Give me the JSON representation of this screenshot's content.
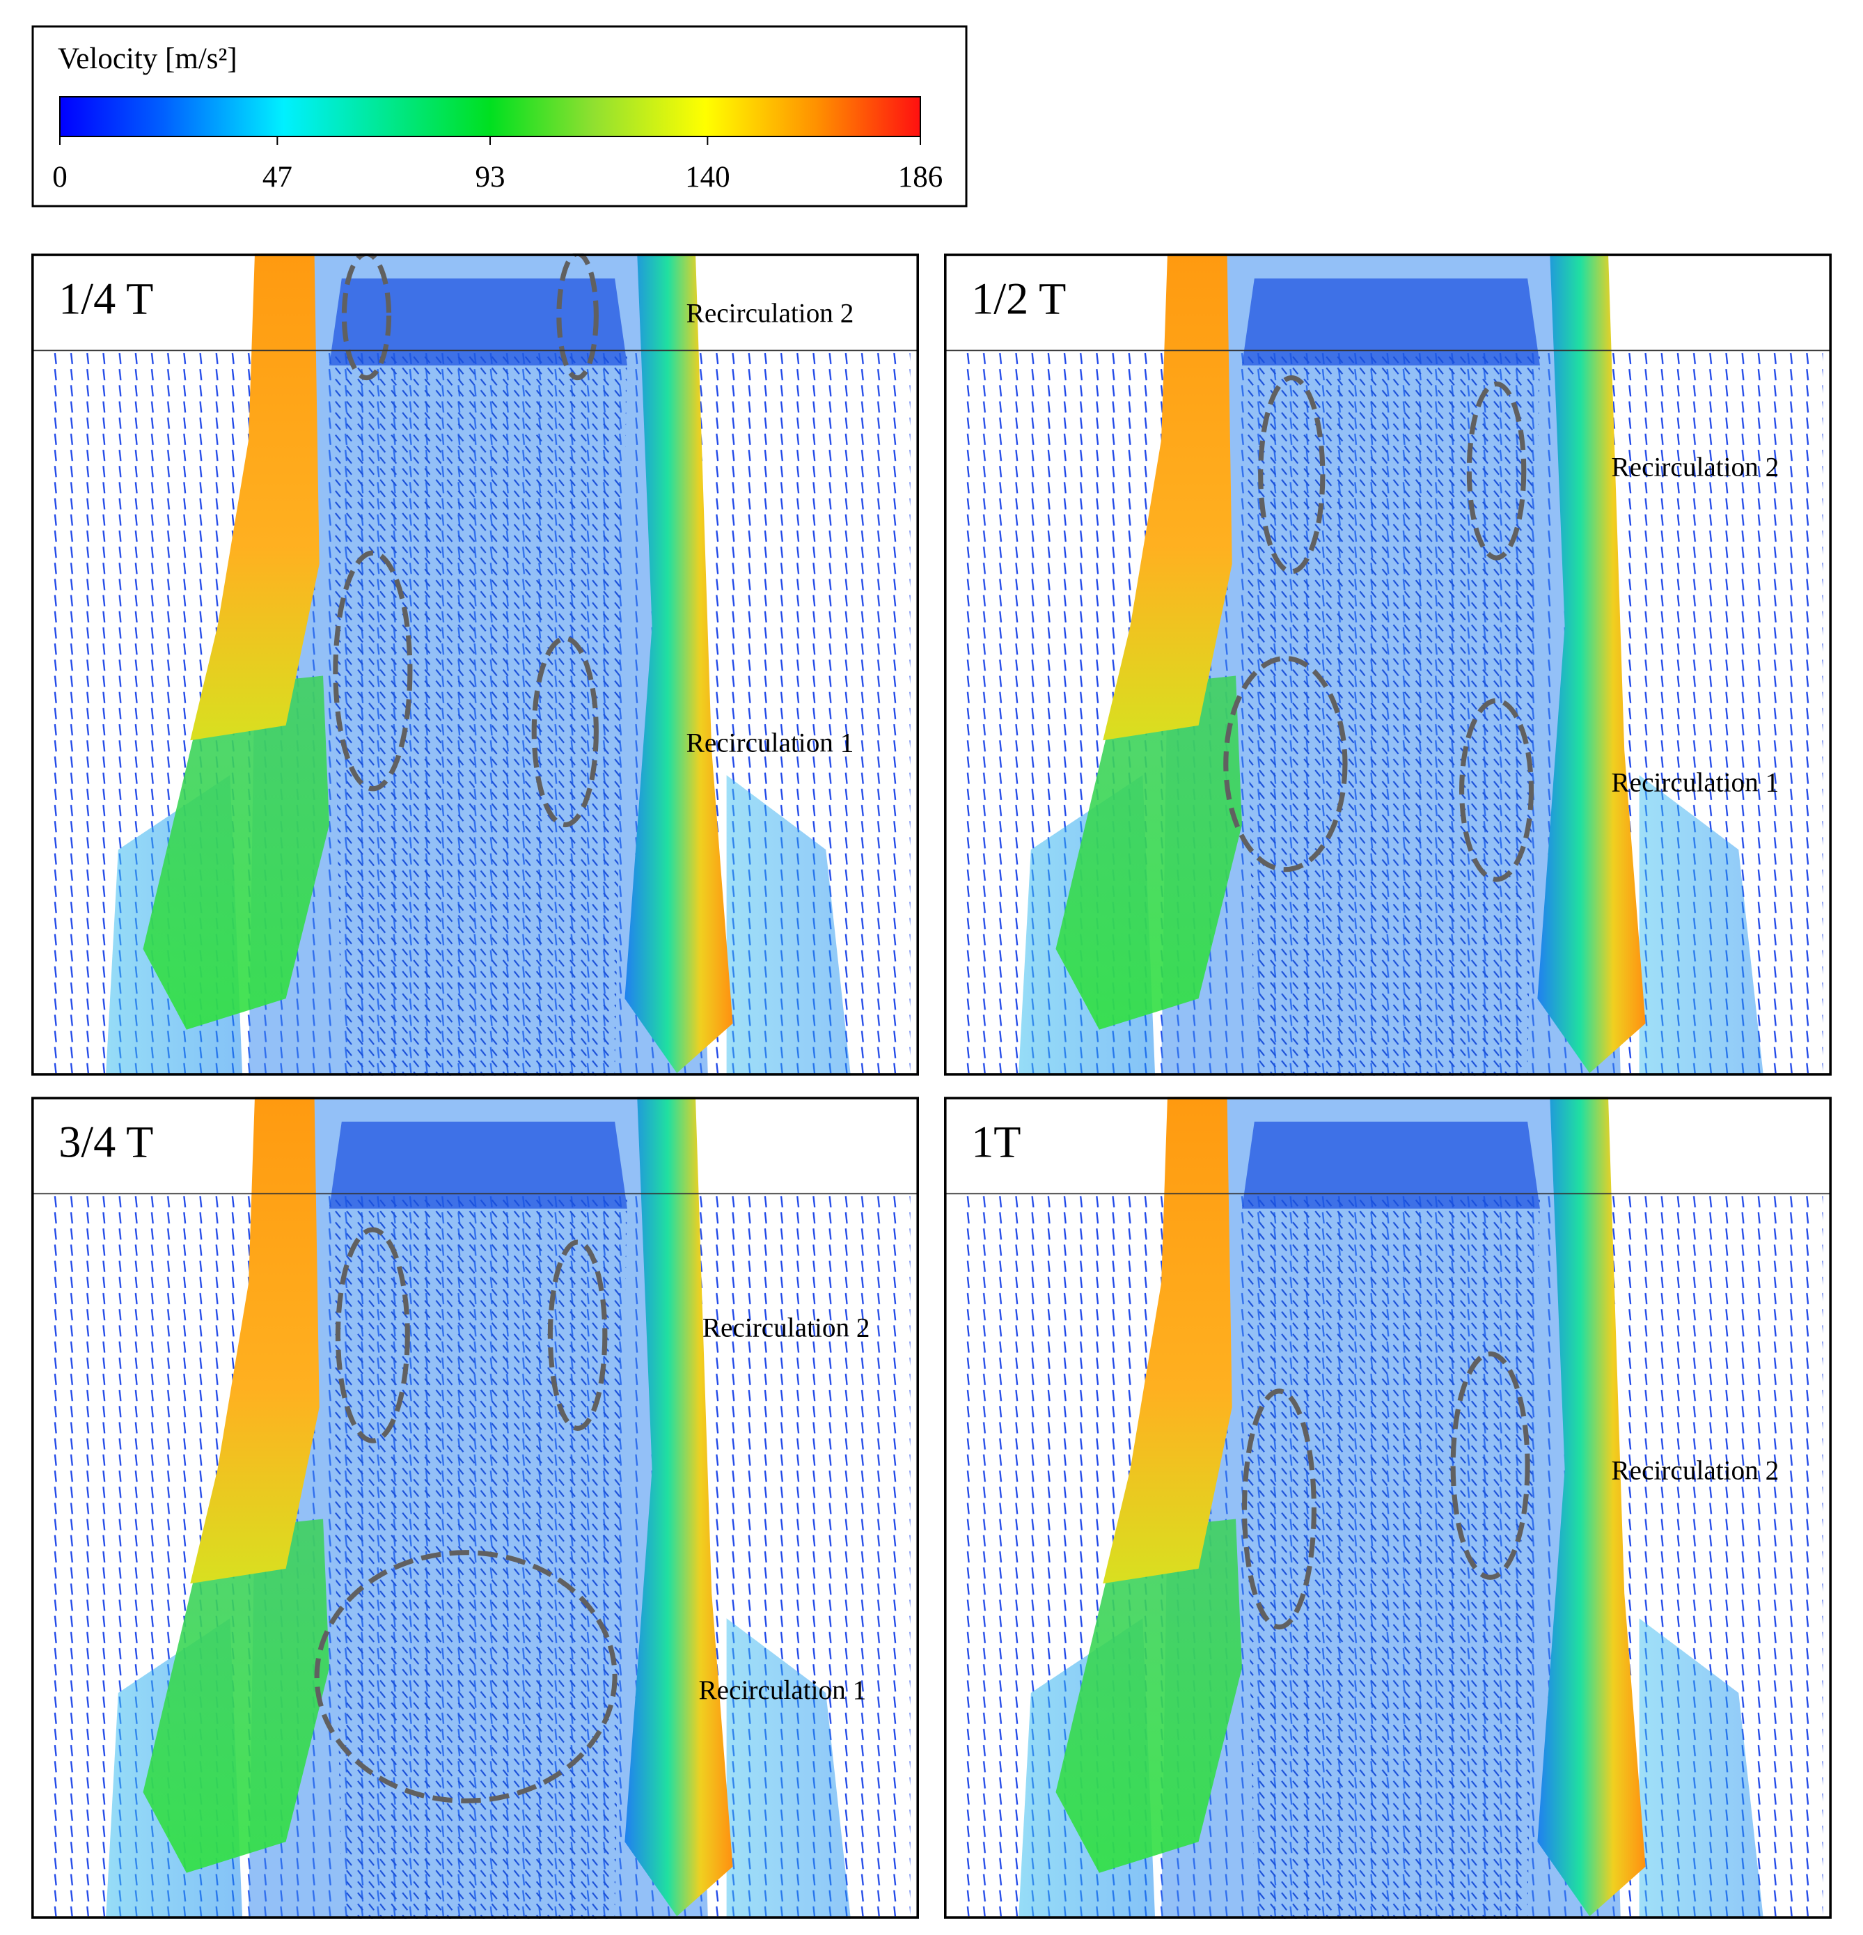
{
  "colorbar": {
    "title": "Velocity [m/s²]",
    "lim": [
      0,
      186
    ],
    "ticks": [
      0,
      47,
      93,
      140,
      186
    ]
  },
  "panels": [
    {
      "label": "1/4 T",
      "annotations": [
        "Recirculation 2",
        "Recirculation 1"
      ]
    },
    {
      "label": "1/2 T",
      "annotations": [
        "Recirculation 2",
        "Recirculation 1"
      ]
    },
    {
      "label": "3/4 T",
      "annotations": [
        "Recirculation 2",
        "Recirculation 1"
      ]
    },
    {
      "label": "1T",
      "annotations": [
        "Recirculation 2"
      ]
    }
  ]
}
